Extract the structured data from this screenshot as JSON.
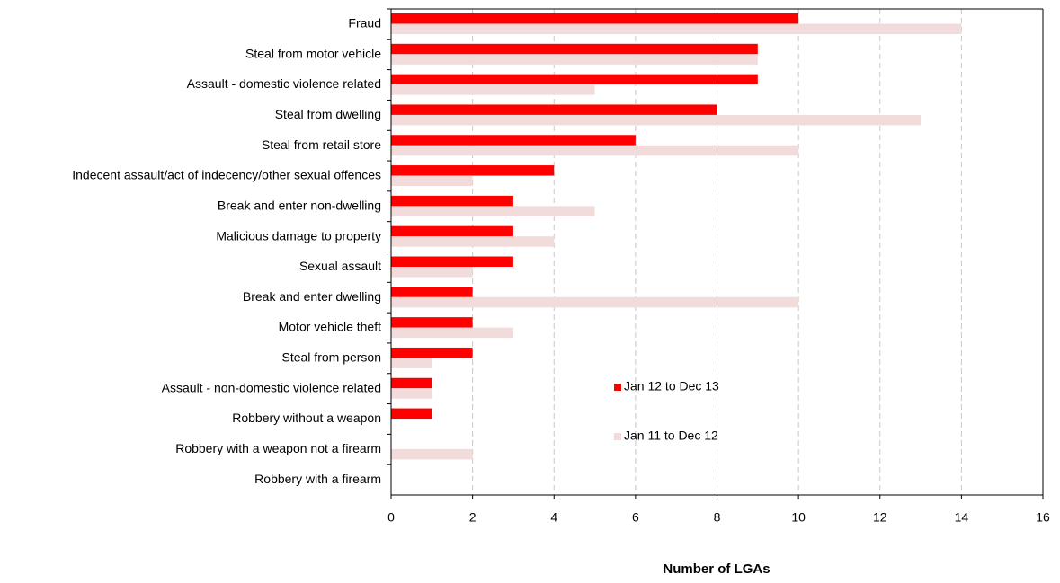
{
  "chart_data": {
    "type": "hbar",
    "x_label": "Number of LGAs",
    "categories": [
      "Fraud",
      "Steal from motor vehicle",
      "Assault - domestic violence related",
      "Steal from dwelling",
      "Steal from retail store",
      "Indecent assault/act of indecency/other sexual offences",
      "Break and enter non-dwelling",
      "Malicious damage to property",
      "Sexual assault",
      "Break and enter dwelling",
      "Motor vehicle theft",
      "Steal from person",
      "Assault - non-domestic violence related",
      "Robbery without a weapon",
      "Robbery with a weapon not a firearm",
      "Robbery with a firearm"
    ],
    "series": [
      {
        "name": "Jan 12 to Dec 13",
        "color": "#ff0000",
        "values": [
          10,
          9,
          9,
          8,
          6,
          4,
          3,
          3,
          3,
          2,
          2,
          2,
          1,
          1,
          0,
          0
        ]
      },
      {
        "name": "Jan 11 to Dec 12",
        "color": "#f2dcdb",
        "values": [
          14,
          9,
          5,
          13,
          10,
          2,
          5,
          4,
          2,
          10,
          3,
          1,
          1,
          0,
          2,
          0
        ]
      }
    ],
    "xlim": [
      0,
      16
    ],
    "xticks": [
      0,
      2,
      4,
      6,
      8,
      10,
      12,
      14,
      16
    ],
    "grid": true
  }
}
